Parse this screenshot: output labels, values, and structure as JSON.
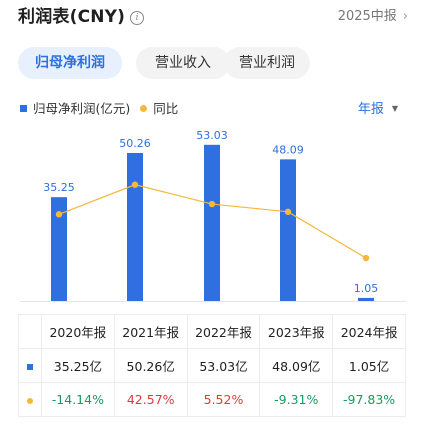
{
  "header": {
    "title": "利润表(CNY)",
    "info_glyph": "i",
    "period_label": "2025中报",
    "chevron": "›"
  },
  "tabs": [
    {
      "label": "归母净利润",
      "active": true
    },
    {
      "label": "营业收入",
      "active": false
    },
    {
      "label": "营业利润",
      "active": false
    }
  ],
  "legend": {
    "bar_label": "归母净利润(亿元)",
    "line_label": "同比"
  },
  "period_selector": {
    "label": "年报",
    "caret": "▼"
  },
  "colors": {
    "bar": "#2f6fe0",
    "line": "#f5b83a",
    "positive": "#e03a3a",
    "negative": "#1a9b5e"
  },
  "chart_data": {
    "type": "bar",
    "categories": [
      "2020年报",
      "2021年报",
      "2022年报",
      "2023年报",
      "2024年报"
    ],
    "series": [
      {
        "name": "归母净利润(亿元)",
        "type": "bar",
        "values": [
          35.25,
          50.26,
          53.03,
          48.09,
          1.05
        ],
        "data_labels": [
          "35.25",
          "50.26",
          "53.03",
          "48.09",
          "1.05"
        ]
      },
      {
        "name": "同比",
        "type": "line",
        "values": [
          -14.14,
          42.57,
          5.52,
          -9.31,
          -97.83
        ]
      }
    ],
    "bar_ylim": [
      0,
      55
    ],
    "line_ylim": [
      -180,
      130
    ],
    "grid": false,
    "legend_position": "top-left"
  },
  "table": {
    "headers": [
      "2020年报",
      "2021年报",
      "2022年报",
      "2023年报",
      "2024年报"
    ],
    "rows": [
      {
        "marker": "bar",
        "cells": [
          "35.25亿",
          "50.26亿",
          "53.03亿",
          "48.09亿",
          "1.05亿"
        ]
      },
      {
        "marker": "dot",
        "cells": [
          "-14.14%",
          "42.57%",
          "5.52%",
          "-9.31%",
          "-97.83%"
        ]
      }
    ]
  }
}
